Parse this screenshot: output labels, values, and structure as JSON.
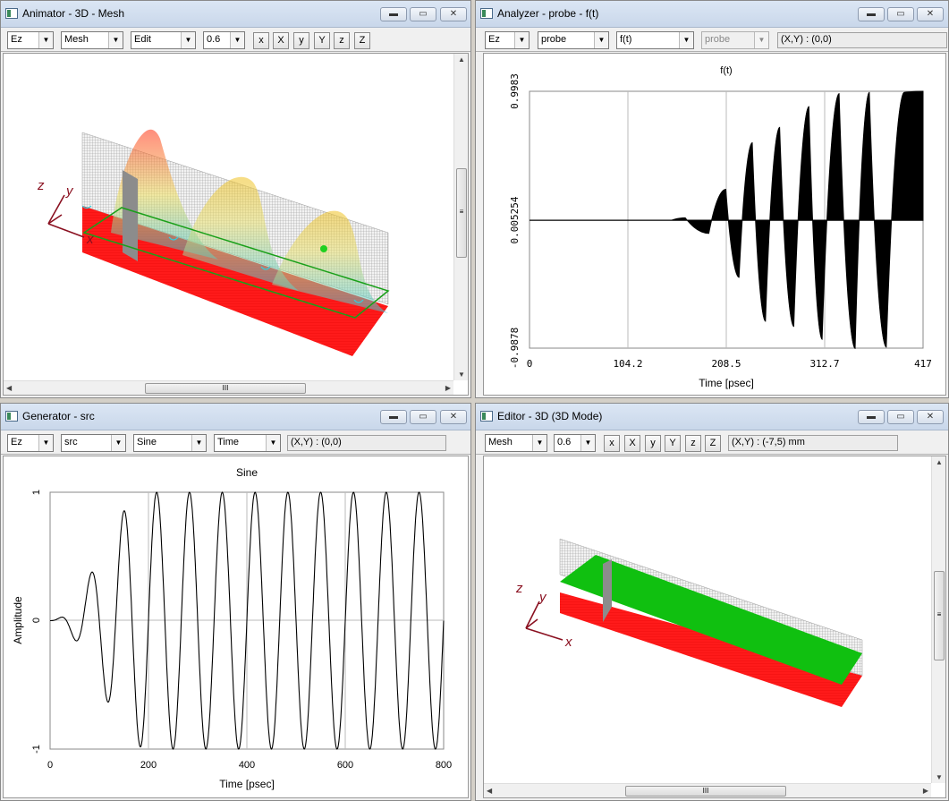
{
  "windows": {
    "animator": {
      "title": "Animator - 3D - Mesh",
      "toolbar": {
        "field": "Ez",
        "view": "Mesh",
        "mode": "Edit",
        "scale": "0.6",
        "axis_buttons": [
          "x",
          "X",
          "y",
          "Y",
          "z",
          "Z"
        ]
      }
    },
    "analyzer": {
      "title": "Analyzer - probe - f(t)",
      "toolbar": {
        "field": "Ez",
        "probe": "probe",
        "function": "f(t)",
        "probe2": "probe",
        "coord": "(X,Y) : (0,0)"
      },
      "chart": {
        "title": "f(t)",
        "xlabel": "Time [psec]",
        "xticks": [
          "0",
          "104.2",
          "208.5",
          "312.7",
          "417"
        ],
        "yticks": [
          "0.9983",
          "0.005254",
          "-0.9878"
        ]
      }
    },
    "generator": {
      "title": "Generator - src",
      "toolbar": {
        "field": "Ez",
        "source": "src",
        "waveform": "Sine",
        "domain": "Time",
        "coord": "(X,Y) : (0,0)"
      },
      "chart": {
        "title": "Sine",
        "xlabel": "Time [psec]",
        "ylabel": "Amplitude",
        "xticks": [
          "0",
          "200",
          "400",
          "600",
          "800"
        ],
        "yticks": [
          "1",
          "0",
          "-1"
        ]
      }
    },
    "editor": {
      "title": "Editor - 3D (3D Mode)",
      "toolbar": {
        "view": "Mesh",
        "scale": "0.6",
        "axis_buttons": [
          "x",
          "X",
          "y",
          "Y",
          "z",
          "Z"
        ],
        "coord": "(X,Y) : (-7,5) mm"
      }
    }
  },
  "window_buttons": {
    "minimize": "▬",
    "maximize": "▭",
    "close": "✕"
  },
  "scroll_grip": "≡",
  "scroll_grip_h": "III",
  "axis_glyphs": {
    "x": "x",
    "y": "y",
    "z": "z"
  },
  "chart_data": [
    {
      "type": "line",
      "title": "f(t)",
      "xlabel": "Time [psec]",
      "xlim": [
        0,
        417
      ],
      "ylim": [
        -0.9878,
        0.9983
      ],
      "description_series": [
        {
          "name": "",
          "x": [
            0,
            150,
            165,
            190,
            208,
            222,
            236,
            250,
            265,
            280,
            296,
            310,
            328,
            345,
            360,
            378,
            397,
            417
          ],
          "y": [
            0,
            0,
            0.02,
            -0.1,
            0.24,
            -0.44,
            0.6,
            -0.78,
            0.72,
            -0.82,
            0.88,
            -0.92,
            0.98,
            -0.99,
            0.99,
            -0.98,
            0.99,
            0.998
          ]
        }
      ]
    },
    {
      "type": "line",
      "title": "Sine",
      "xlabel": "Time [psec]",
      "ylabel": "Amplitude",
      "xlim": [
        0,
        800
      ],
      "ylim": [
        -1,
        1
      ],
      "series": [
        {
          "name": "",
          "frequency_ghz": 15,
          "ramp_end_psec": 200
        }
      ]
    }
  ]
}
